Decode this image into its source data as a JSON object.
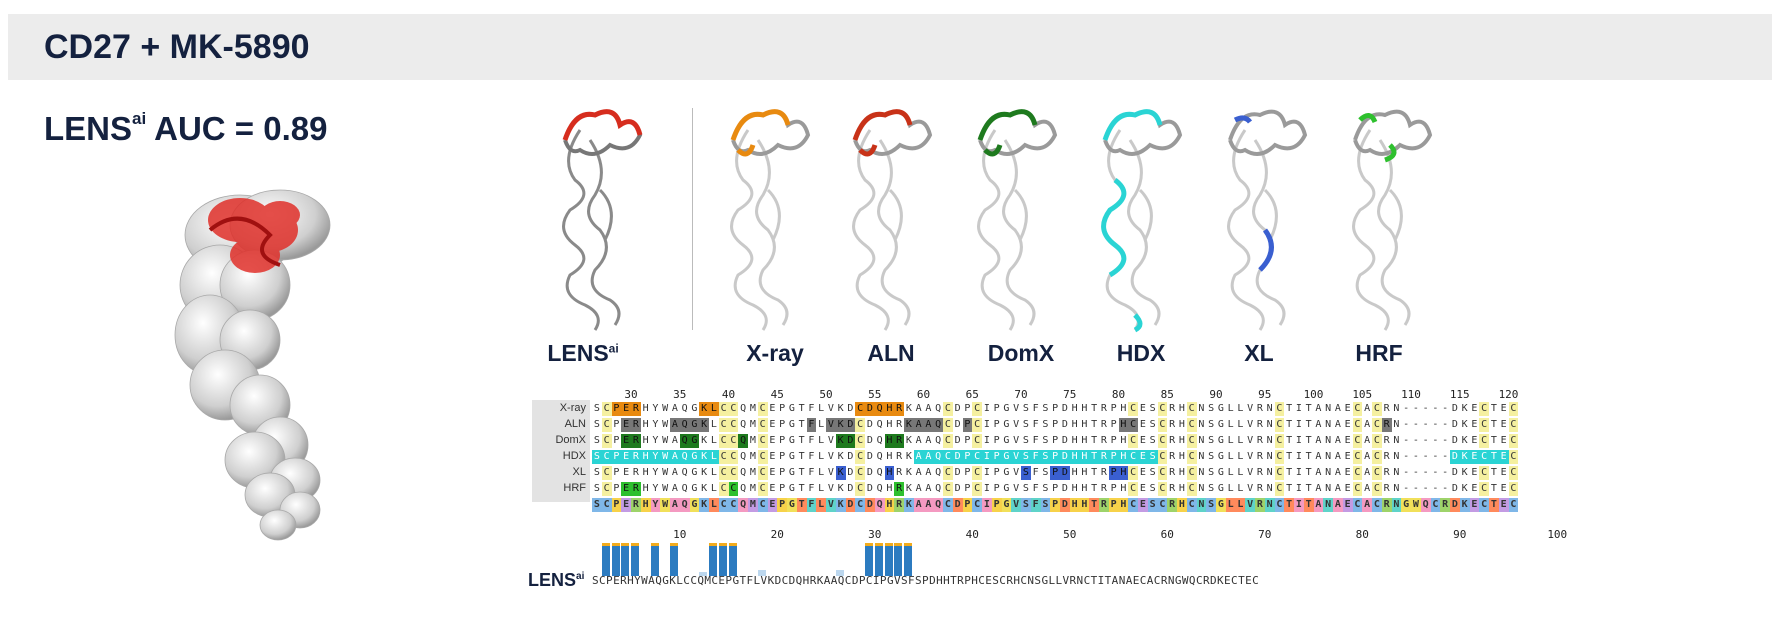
{
  "header": {
    "title": "CD27 + MK-5890"
  },
  "auc": {
    "prefix": "LENS",
    "sup": "ai",
    "suffix": " AUC = 0.89"
  },
  "colors": {
    "lens": "#d62d1e",
    "xray": "#e88a10",
    "aln": "#c83218",
    "domx": "#1e7a1e",
    "hdx": "#2ad4d4",
    "xl": "#3a5fd0",
    "hrf": "#2ec02e",
    "bar": "#2c7bc0",
    "bar_light": "#bcd7ee",
    "bar_top": "#f2ab1c"
  },
  "methods": [
    {
      "name": "LENS",
      "sup": "ai",
      "color_key": "lens"
    },
    {
      "name": "X-ray",
      "sup": "",
      "color_key": "xray"
    },
    {
      "name": "ALN",
      "sup": "",
      "color_key": "aln"
    },
    {
      "name": "DomX",
      "sup": "",
      "color_key": "domx"
    },
    {
      "name": "HDX",
      "sup": "",
      "color_key": "hdx"
    },
    {
      "name": "XL",
      "sup": "",
      "color_key": "xl"
    },
    {
      "name": "HRF",
      "sup": "",
      "color_key": "hrf"
    }
  ],
  "alignment": {
    "top_ticks": [
      "30",
      "35",
      "40",
      "45",
      "50",
      "55",
      "60",
      "65",
      "70",
      "75",
      "80",
      "85",
      "90",
      "95",
      "100",
      "105",
      "110",
      "115",
      "120"
    ],
    "bottom_ticks": [
      "10",
      "20",
      "30",
      "40",
      "50",
      "60",
      "70",
      "80",
      "90",
      "100"
    ],
    "rows": [
      {
        "label": "X-ray",
        "seq": "SCPERHYWAQGKLCCQMCEPGTFLVKDCDQHRKAAQCDPCIPGVSFSPDHHTRPHCESCRHCNSGLLVRNCTITANAECACRN-----DKECTEC"
      },
      {
        "label": "ALN",
        "seq": "SCPERHYWAQGKLCCQMCEPGTFLVKDCDQHRKAAQCDPCIPGVSFSPDHHTRPHCESCRHCNSGLLVRNCTITANAECACRN-----DKECTEC"
      },
      {
        "label": "DomX",
        "seq": "SCPERHYWAQGKLCCQMCEPGTFLVKDCDQHRKAAQCDPCIPGVSFSPDHHTRPHCESCRHCNSGLLVRNCTITANAECACRN-----DKECTEC"
      },
      {
        "label": "HDX",
        "seq": "SCPERHYWAQGKLCCQMCEPGTFLVKDCDQHRKAAQCDPCIPGVSFSPDHHTRPHCESCRHCNSGLLVRNCTITANAECACRN-----DKECTEC"
      },
      {
        "label": "XL",
        "seq": "SCPERHYWAQGKLCCQMCEPGTFLVKDCDQHRKAAQCDPCIPGVSFSPDHHTRPHCESCRHCNSGLLVRNCTITANAECACRN-----DKECTEC"
      },
      {
        "label": "HRF",
        "seq": "SCPERHYWAQGKLCCQMCEPGTFLVKDCDQHRKAAQCDPCIPGVSFSPDHHTRPHCESCRHCNSGLLVRNCTITANAECACRN-----DKECTEC"
      }
    ],
    "consensus": "SCPERHYWAQGKLCCQMCEPGTFLVKDCDQHRKAAQCDPCIPGVSFSPDHHTRPHCESCRHCNSGLLVRNCTITANAECACRNGWQCRDKECTEC"
  },
  "lens_track": {
    "label": "LENS",
    "sup": "ai",
    "sequence": "SCPERHYWAQGKLCCQMCEPGTFLVKDCDQHRKAAQCDPCIPGVSFSPDHHTRPHCESCRHCNSGLLVRNCTITANAECACRNGWQCRDKECTEC",
    "scores": [
      0,
      1,
      1,
      1,
      1,
      0,
      1,
      0,
      1,
      0,
      0,
      0.1,
      1,
      1,
      1,
      0,
      0,
      0.2,
      0,
      0,
      0,
      0,
      0,
      0,
      0,
      0.2,
      0,
      0,
      1,
      1,
      1,
      1,
      1,
      0
    ]
  }
}
